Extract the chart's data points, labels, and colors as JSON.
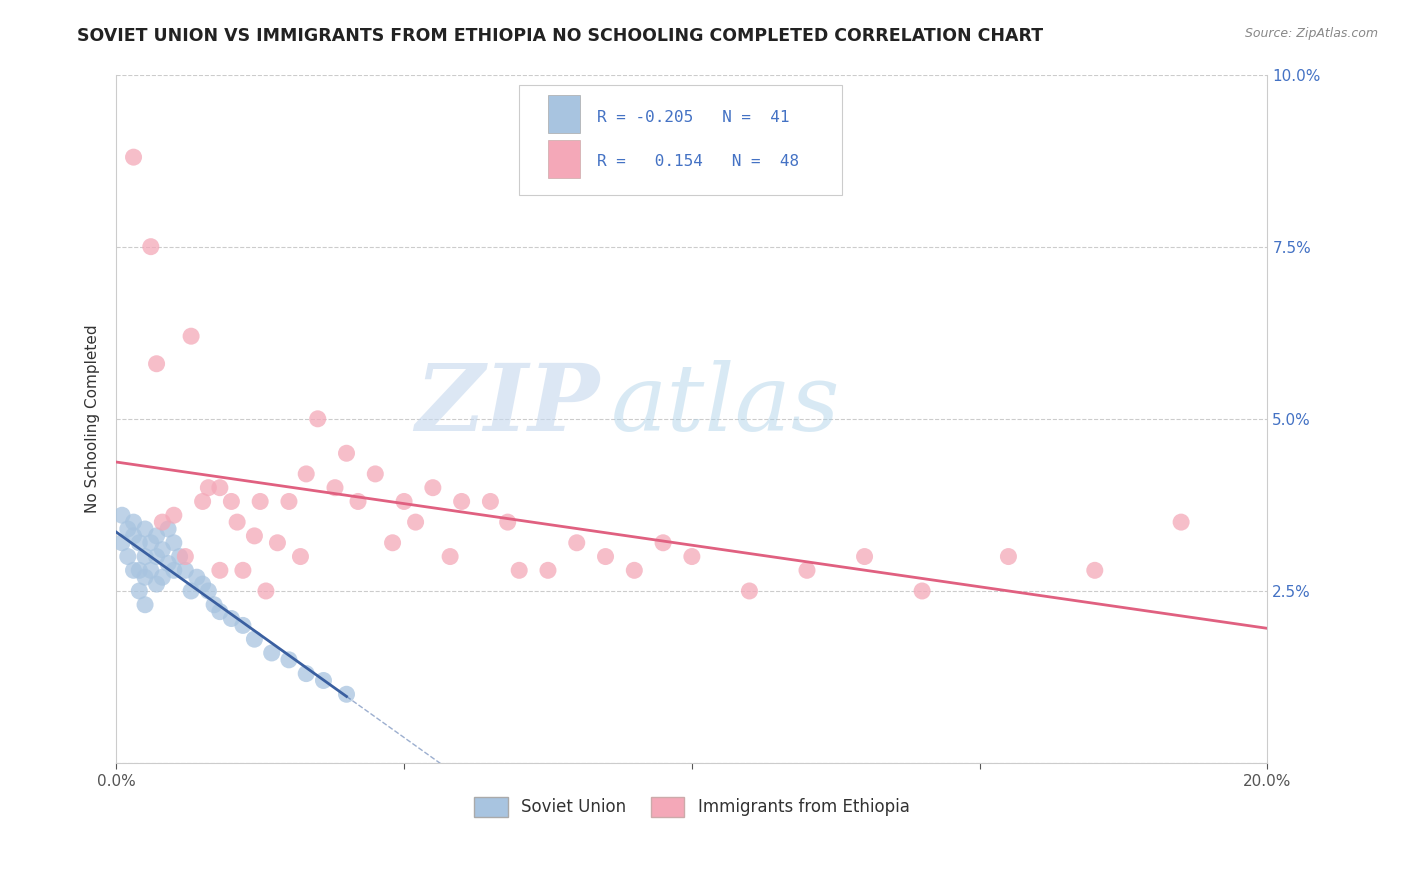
{
  "title": "SOVIET UNION VS IMMIGRANTS FROM ETHIOPIA NO SCHOOLING COMPLETED CORRELATION CHART",
  "source": "Source: ZipAtlas.com",
  "ylabel": "No Schooling Completed",
  "xlim": [
    0.0,
    0.2
  ],
  "ylim": [
    0.0,
    0.1
  ],
  "soviet_color": "#a8c4e0",
  "ethiopia_color": "#f4a8b8",
  "soviet_line_color": "#3a5fa0",
  "ethiopia_line_color": "#e06080",
  "legend_r1": "-0.205",
  "legend_n1": "41",
  "legend_r2": "0.154",
  "legend_n2": "48",
  "legend_label1": "Soviet Union",
  "legend_label2": "Immigrants from Ethiopia",
  "watermark_zip": "ZIP",
  "watermark_atlas": "atlas",
  "background_color": "#ffffff",
  "grid_color": "#cccccc",
  "soviet_x": [
    0.001,
    0.001,
    0.002,
    0.002,
    0.003,
    0.003,
    0.003,
    0.004,
    0.004,
    0.004,
    0.005,
    0.005,
    0.005,
    0.005,
    0.006,
    0.006,
    0.007,
    0.007,
    0.007,
    0.008,
    0.008,
    0.009,
    0.009,
    0.01,
    0.01,
    0.011,
    0.012,
    0.013,
    0.014,
    0.015,
    0.016,
    0.017,
    0.018,
    0.02,
    0.022,
    0.024,
    0.027,
    0.03,
    0.033,
    0.036,
    0.04
  ],
  "soviet_y": [
    0.036,
    0.032,
    0.034,
    0.03,
    0.035,
    0.033,
    0.028,
    0.032,
    0.028,
    0.025,
    0.034,
    0.03,
    0.027,
    0.023,
    0.032,
    0.028,
    0.033,
    0.03,
    0.026,
    0.031,
    0.027,
    0.034,
    0.029,
    0.032,
    0.028,
    0.03,
    0.028,
    0.025,
    0.027,
    0.026,
    0.025,
    0.023,
    0.022,
    0.021,
    0.02,
    0.018,
    0.016,
    0.015,
    0.013,
    0.012,
    0.01
  ],
  "ethiopia_x": [
    0.003,
    0.006,
    0.007,
    0.008,
    0.01,
    0.012,
    0.013,
    0.015,
    0.016,
    0.018,
    0.018,
    0.02,
    0.021,
    0.022,
    0.024,
    0.025,
    0.026,
    0.028,
    0.03,
    0.032,
    0.033,
    0.035,
    0.038,
    0.04,
    0.042,
    0.045,
    0.048,
    0.05,
    0.052,
    0.055,
    0.058,
    0.06,
    0.065,
    0.068,
    0.07,
    0.075,
    0.08,
    0.085,
    0.09,
    0.095,
    0.1,
    0.11,
    0.12,
    0.13,
    0.14,
    0.155,
    0.17,
    0.185
  ],
  "ethiopia_y": [
    0.088,
    0.075,
    0.058,
    0.035,
    0.036,
    0.03,
    0.062,
    0.038,
    0.04,
    0.04,
    0.028,
    0.038,
    0.035,
    0.028,
    0.033,
    0.038,
    0.025,
    0.032,
    0.038,
    0.03,
    0.042,
    0.05,
    0.04,
    0.045,
    0.038,
    0.042,
    0.032,
    0.038,
    0.035,
    0.04,
    0.03,
    0.038,
    0.038,
    0.035,
    0.028,
    0.028,
    0.032,
    0.03,
    0.028,
    0.032,
    0.03,
    0.025,
    0.028,
    0.03,
    0.025,
    0.03,
    0.028,
    0.035
  ]
}
